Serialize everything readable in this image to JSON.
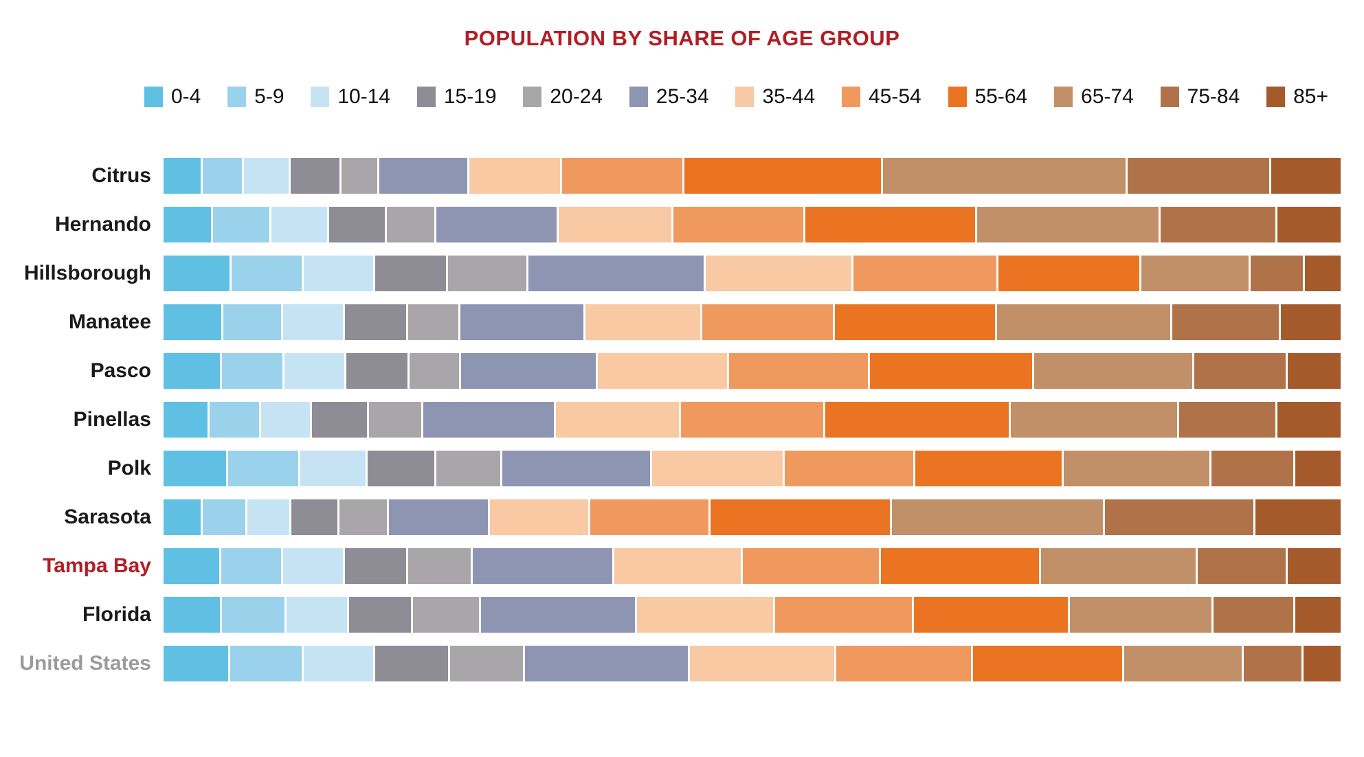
{
  "title": {
    "text": "POPULATION BY SHARE OF AGE GROUP",
    "color": "#B11E25"
  },
  "legend": [
    {
      "label": "0-4",
      "color": "#5FC0E4"
    },
    {
      "label": "5-9",
      "color": "#9AD2EC"
    },
    {
      "label": "10-14",
      "color": "#C6E3F3"
    },
    {
      "label": "15-19",
      "color": "#8E8D95"
    },
    {
      "label": "20-24",
      "color": "#A9A6A9"
    },
    {
      "label": "25-34",
      "color": "#8D95B3"
    },
    {
      "label": "35-44",
      "color": "#F8C9A2"
    },
    {
      "label": "45-54",
      "color": "#F0995E"
    },
    {
      "label": "55-64",
      "color": "#EB7423"
    },
    {
      "label": "65-74",
      "color": "#C18F68"
    },
    {
      "label": "75-84",
      "color": "#B07349"
    },
    {
      "label": "85+",
      "color": "#A55A2C"
    }
  ],
  "chart_data": {
    "type": "bar",
    "stacked": true,
    "orientation": "horizontal",
    "units": "percent share of population (bars sum to 100%)",
    "title": "POPULATION BY SHARE OF AGE GROUP",
    "xlim": [
      0,
      100
    ],
    "grid": false,
    "legend_position": "top",
    "categories": [
      "0-4",
      "5-9",
      "10-14",
      "15-19",
      "20-24",
      "25-34",
      "35-44",
      "45-54",
      "55-64",
      "65-74",
      "75-84",
      "85+"
    ],
    "rows": [
      {
        "name": "Citrus",
        "label_color": "#1a1a1a",
        "values": [
          3.2,
          3.4,
          3.9,
          4.2,
          3.1,
          7.6,
          7.9,
          10.4,
          17.0,
          21.0,
          12.3,
          6.0
        ]
      },
      {
        "name": "Hernando",
        "label_color": "#1a1a1a",
        "values": [
          4.1,
          4.9,
          4.8,
          4.8,
          4.1,
          10.4,
          9.8,
          11.2,
          14.7,
          15.7,
          9.9,
          5.5
        ]
      },
      {
        "name": "Hillsborough",
        "label_color": "#1a1a1a",
        "values": [
          5.7,
          6.1,
          6.0,
          6.1,
          6.8,
          15.2,
          12.6,
          12.4,
          12.2,
          9.3,
          4.5,
          3.1
        ]
      },
      {
        "name": "Manatee",
        "label_color": "#1a1a1a",
        "values": [
          5.0,
          5.0,
          5.2,
          5.3,
          4.3,
          10.7,
          9.9,
          11.3,
          13.9,
          15.0,
          9.2,
          5.2
        ]
      },
      {
        "name": "Pasco",
        "label_color": "#1a1a1a",
        "values": [
          4.9,
          5.2,
          5.2,
          5.3,
          4.3,
          11.7,
          11.2,
          12.0,
          14.1,
          13.7,
          7.9,
          4.6
        ]
      },
      {
        "name": "Pinellas",
        "label_color": "#1a1a1a",
        "values": [
          3.8,
          4.3,
          4.2,
          4.8,
          4.5,
          11.3,
          10.7,
          12.3,
          15.9,
          14.4,
          8.3,
          5.5
        ]
      },
      {
        "name": "Polk",
        "label_color": "#1a1a1a",
        "values": [
          5.4,
          6.1,
          5.6,
          5.8,
          5.5,
          12.8,
          11.3,
          11.1,
          12.7,
          12.6,
          7.1,
          3.9
        ]
      },
      {
        "name": "Sarasota",
        "label_color": "#1a1a1a",
        "values": [
          3.2,
          3.7,
          3.6,
          4.0,
          4.1,
          8.6,
          8.5,
          10.2,
          15.5,
          18.3,
          12.8,
          7.4
        ]
      },
      {
        "name": "Tampa Bay",
        "label_color": "#B11E25",
        "values": [
          4.8,
          5.2,
          5.2,
          5.3,
          5.4,
          12.1,
          11.0,
          11.8,
          13.7,
          13.4,
          7.6,
          4.6
        ]
      },
      {
        "name": "Florida",
        "label_color": "#1a1a1a",
        "values": [
          4.9,
          5.4,
          5.2,
          5.4,
          5.7,
          13.3,
          11.8,
          11.8,
          13.3,
          12.3,
          6.9,
          3.9
        ]
      },
      {
        "name": "United States",
        "label_color": "#9B9B9B",
        "values": [
          5.6,
          6.2,
          6.0,
          6.3,
          6.3,
          14.1,
          12.5,
          11.7,
          12.9,
          10.2,
          5.0,
          3.2
        ]
      }
    ]
  }
}
